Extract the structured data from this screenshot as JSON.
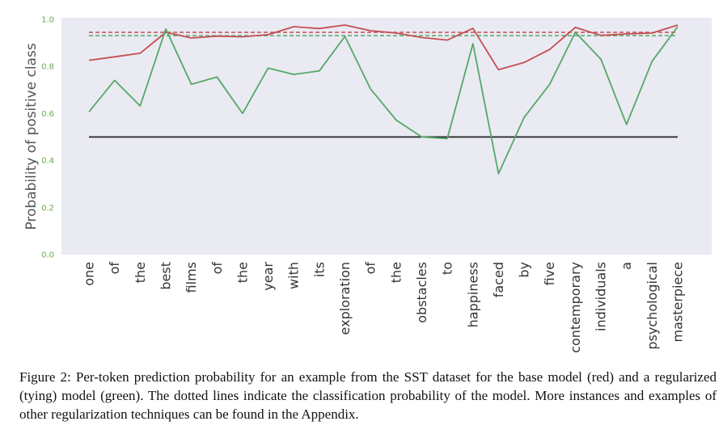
{
  "chart_data": {
    "type": "line",
    "ylabel": "Probability of positive class",
    "xlabel": "",
    "ylim": [
      0.0,
      1.0
    ],
    "yticks": [
      "0.0",
      "0.2",
      "0.4",
      "0.6",
      "0.8",
      "1.0"
    ],
    "grid": false,
    "categories": [
      "one",
      "of",
      "the",
      "best",
      "films",
      "of",
      "the",
      "year",
      "with",
      "its",
      "exploration",
      "of",
      "the",
      "obstacles",
      "to",
      "happiness",
      "faced",
      "by",
      "five",
      "contemporary",
      "individuals",
      "a",
      "psychological",
      "masterpiece"
    ],
    "series": [
      {
        "color": "#c44e52",
        "values": [
          0.826,
          0.841,
          0.856,
          0.945,
          0.921,
          0.929,
          0.926,
          0.935,
          0.969,
          0.961,
          0.976,
          0.952,
          0.942,
          0.923,
          0.912,
          0.962,
          0.786,
          0.817,
          0.872,
          0.966,
          0.932,
          0.938,
          0.942,
          0.976
        ]
      },
      {
        "color": "#55a868",
        "values": [
          0.607,
          0.741,
          0.632,
          0.959,
          0.724,
          0.755,
          0.6,
          0.793,
          0.766,
          0.781,
          0.928,
          0.704,
          0.572,
          0.5,
          0.493,
          0.897,
          0.344,
          0.583,
          0.724,
          0.945,
          0.831,
          0.553,
          0.822,
          0.969
        ]
      }
    ],
    "reference_lines": [
      {
        "style": "dashed",
        "color": "#c44e52",
        "value": 0.945
      },
      {
        "style": "dashed",
        "color": "#55a868",
        "value": 0.931
      },
      {
        "style": "solid",
        "color": "#222222",
        "value": 0.5
      }
    ]
  },
  "caption": "Figure 2: Per-token prediction probability for an example from the SST dataset for the base model (red) and a regularized (tying) model (green). The dotted lines indicate the classification probability of the model. More instances and examples of other regularization techniques can be found in the Appendix."
}
